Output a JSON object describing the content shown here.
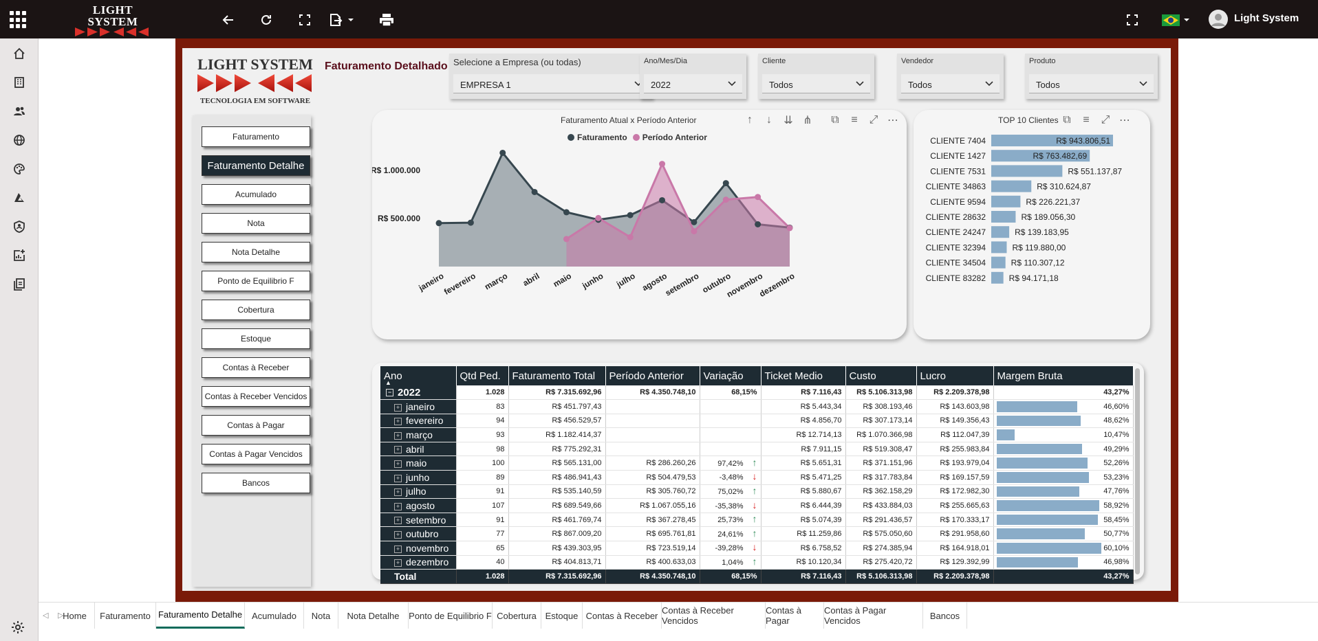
{
  "app": {
    "logo_line1": "LIGHT SYSTEM",
    "logo_line2": "TECNOLOGIA EM SOFTWARE",
    "user_name": "Light System"
  },
  "report": {
    "title": "Faturamento Detalhado",
    "logo_line1": "LIGHT SYSTEM",
    "logo_line2": "TECNOLOGIA EM SOFTWARE"
  },
  "slicers": [
    {
      "label": "Selecione a Empresa (ou todas)",
      "value": "EMPRESA 1"
    },
    {
      "label": "Ano/Mes/Dia",
      "value": "2022"
    },
    {
      "label": "Cliente",
      "value": "Todos"
    },
    {
      "label": "Vendedor",
      "value": "Todos"
    },
    {
      "label": "Produto",
      "value": "Todos"
    }
  ],
  "nav_buttons": [
    "Faturamento",
    "Faturamento Detalhe",
    "Acumulado",
    "Nota",
    "Nota Detalhe",
    "Ponto de Equilibrio F",
    "Cobertura",
    "Estoque",
    "Contas à Receber",
    "Contas à Receber Vencidos",
    "Contas à Pagar",
    "Contas à Pagar Vencidos",
    "Bancos"
  ],
  "line_chart": {
    "title": "Faturamento Atual x Período Anterior",
    "legend_1": "Faturamento",
    "legend_2": "Período Anterior",
    "tick_1": "R$ 1.000.000",
    "tick_2": "R$ 500.000"
  },
  "top_clients": {
    "title": "TOP 10 Clientes",
    "items": [
      {
        "name": "CLIENTE 7404",
        "label": "R$ 943.806,51"
      },
      {
        "name": "CLIENTE 1427",
        "label": "R$ 763.482,69"
      },
      {
        "name": "CLIENTE 7531",
        "label": "R$ 551.137,87"
      },
      {
        "name": "CLIENTE 34863",
        "label": "R$ 310.624,87"
      },
      {
        "name": "CLIENTE 9594",
        "label": "R$ 226.221,37"
      },
      {
        "name": "CLIENTE 28632",
        "label": "R$ 189.056,30"
      },
      {
        "name": "CLIENTE 24247",
        "label": "R$ 139.183,95"
      },
      {
        "name": "CLIENTE 32394",
        "label": "R$ 119.880,00"
      },
      {
        "name": "CLIENTE 34504",
        "label": "R$ 110.307,12"
      },
      {
        "name": "CLIENTE 83282",
        "label": "R$ 94.171,18"
      }
    ]
  },
  "matrix": {
    "headers": [
      "Ano",
      "Qtd Ped.",
      "Faturamento Total",
      "Período Anterior",
      "Variação",
      "Ticket Medio",
      "Custo",
      "Lucro",
      "Margem Bruta"
    ],
    "year_row": {
      "label": "2022",
      "qtd": "1.028",
      "fat": "R$ 7.315.692,96",
      "ant": "R$ 4.350.748,10",
      "var": "68,15%",
      "ticket": "R$ 7.116,43",
      "custo": "R$ 5.106.313,98",
      "lucro": "R$ 2.209.378,98",
      "margem": "43,27%"
    },
    "total_row": {
      "label": "Total",
      "qtd": "1.028",
      "fat": "R$ 7.315.692,96",
      "ant": "R$ 4.350.748,10",
      "var": "68,15%",
      "ticket": "R$ 7.116,43",
      "custo": "R$ 5.106.313,98",
      "lucro": "R$ 2.209.378,98",
      "margem": "43,27%"
    }
  },
  "tabs": [
    "Home",
    "Faturamento",
    "Faturamento Detalhe",
    "Acumulado",
    "Nota",
    "Nota Detalhe",
    "Ponto de Equilibrio F",
    "Cobertura",
    "Estoque",
    "Contas à Receber",
    "Contas à Receber Vencidos",
    "Contas à Pagar",
    "Contas à Pagar Vencidos",
    "Bancos"
  ],
  "chart_data": [
    {
      "type": "area",
      "title": "Faturamento Atual x Período Anterior",
      "categories": [
        "janeiro",
        "fevereiro",
        "março",
        "abril",
        "maio",
        "junho",
        "julho",
        "agosto",
        "setembro",
        "outubro",
        "novembro",
        "dezembro"
      ],
      "series": [
        {
          "name": "Faturamento",
          "color": "#37474f",
          "values": [
            451797.43,
            456529.57,
            1182414.37,
            775292.31,
            565131.0,
            486941.43,
            535140.59,
            689549.66,
            461769.74,
            867009.2,
            439303.95,
            404813.71
          ]
        },
        {
          "name": "Período Anterior",
          "color": "#c978a8",
          "values": [
            null,
            null,
            null,
            null,
            286260.26,
            504479.53,
            305760.72,
            1067055.16,
            367278.45,
            695761.81,
            723519.14,
            400633.03
          ]
        }
      ],
      "yticks": [
        500000,
        1000000
      ],
      "legend": "top"
    },
    {
      "type": "bar",
      "title": "TOP 10 Clientes",
      "orientation": "horizontal",
      "categories": [
        "CLIENTE 7404",
        "CLIENTE 1427",
        "CLIENTE 7531",
        "CLIENTE 34863",
        "CLIENTE 9594",
        "CLIENTE 28632",
        "CLIENTE 24247",
        "CLIENTE 32394",
        "CLIENTE 34504",
        "CLIENTE 83282"
      ],
      "values": [
        943806.51,
        763482.69,
        551137.87,
        310624.87,
        226221.37,
        189056.3,
        139183.95,
        119880.0,
        110307.12,
        94171.18
      ]
    },
    {
      "type": "table",
      "rows": [
        {
          "mes": "janeiro",
          "qtd": "83",
          "fat": "R$ 451.797,43",
          "ant": "",
          "var": "",
          "dir": "",
          "ticket": "R$ 5.443,34",
          "custo": "R$ 308.193,46",
          "lucro": "R$ 143.603,98",
          "margem": "46,60%",
          "m": 46.6
        },
        {
          "mes": "fevereiro",
          "qtd": "94",
          "fat": "R$ 456.529,57",
          "ant": "",
          "var": "",
          "dir": "",
          "ticket": "R$ 4.856,70",
          "custo": "R$ 307.173,14",
          "lucro": "R$ 149.356,43",
          "margem": "48,62%",
          "m": 48.62
        },
        {
          "mes": "março",
          "qtd": "93",
          "fat": "R$ 1.182.414,37",
          "ant": "",
          "var": "",
          "dir": "",
          "ticket": "R$ 12.714,13",
          "custo": "R$ 1.070.366,98",
          "lucro": "R$ 112.047,39",
          "margem": "10,47%",
          "m": 10.47
        },
        {
          "mes": "abril",
          "qtd": "98",
          "fat": "R$ 775.292,31",
          "ant": "",
          "var": "",
          "dir": "",
          "ticket": "R$ 7.911,15",
          "custo": "R$ 519.308,47",
          "lucro": "R$ 255.983,84",
          "margem": "49,29%",
          "m": 49.29
        },
        {
          "mes": "maio",
          "qtd": "100",
          "fat": "R$ 565.131,00",
          "ant": "R$ 286.260,26",
          "var": "97,42%",
          "dir": "up",
          "ticket": "R$ 5.651,31",
          "custo": "R$ 371.151,96",
          "lucro": "R$ 193.979,04",
          "margem": "52,26%",
          "m": 52.26
        },
        {
          "mes": "junho",
          "qtd": "89",
          "fat": "R$ 486.941,43",
          "ant": "R$ 504.479,53",
          "var": "-3,48%",
          "dir": "down",
          "ticket": "R$ 5.471,25",
          "custo": "R$ 317.783,84",
          "lucro": "R$ 169.157,59",
          "margem": "53,23%",
          "m": 53.23
        },
        {
          "mes": "julho",
          "qtd": "91",
          "fat": "R$ 535.140,59",
          "ant": "R$ 305.760,72",
          "var": "75,02%",
          "dir": "up",
          "ticket": "R$ 5.880,67",
          "custo": "R$ 362.158,29",
          "lucro": "R$ 172.982,30",
          "margem": "47,76%",
          "m": 47.76
        },
        {
          "mes": "agosto",
          "qtd": "107",
          "fat": "R$ 689.549,66",
          "ant": "R$ 1.067.055,16",
          "var": "-35,38%",
          "dir": "down",
          "ticket": "R$ 6.444,39",
          "custo": "R$ 433.884,03",
          "lucro": "R$ 255.665,63",
          "margem": "58,92%",
          "m": 58.92
        },
        {
          "mes": "setembro",
          "qtd": "91",
          "fat": "R$ 461.769,74",
          "ant": "R$ 367.278,45",
          "var": "25,73%",
          "dir": "up",
          "ticket": "R$ 5.074,39",
          "custo": "R$ 291.436,57",
          "lucro": "R$ 170.333,17",
          "margem": "58,45%",
          "m": 58.45
        },
        {
          "mes": "outubro",
          "qtd": "77",
          "fat": "R$ 867.009,20",
          "ant": "R$ 695.761,81",
          "var": "24,61%",
          "dir": "up",
          "ticket": "R$ 11.259,86",
          "custo": "R$ 575.050,60",
          "lucro": "R$ 291.958,60",
          "margem": "50,77%",
          "m": 50.77
        },
        {
          "mes": "novembro",
          "qtd": "65",
          "fat": "R$ 439.303,95",
          "ant": "R$ 723.519,14",
          "var": "-39,28%",
          "dir": "down",
          "ticket": "R$ 6.758,52",
          "custo": "R$ 274.385,94",
          "lucro": "R$ 164.918,01",
          "margem": "60,10%",
          "m": 60.1
        },
        {
          "mes": "dezembro",
          "qtd": "40",
          "fat": "R$ 404.813,71",
          "ant": "R$ 400.633,03",
          "var": "1,04%",
          "dir": "up",
          "ticket": "R$ 10.120,34",
          "custo": "R$ 275.420,72",
          "lucro": "R$ 129.392,99",
          "margem": "46,98%",
          "m": 46.98
        }
      ]
    }
  ]
}
